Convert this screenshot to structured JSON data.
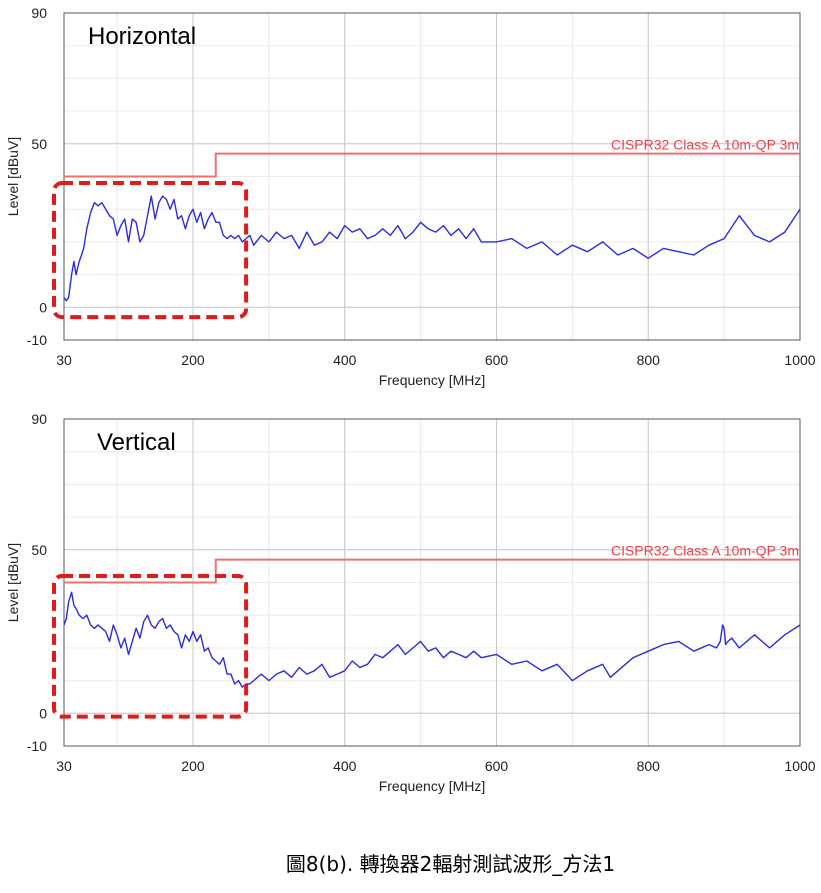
{
  "caption": "圖8(b). 轉換器2輻射測試波形_方法1",
  "chart_data": [
    {
      "type": "line",
      "title": "Horizontal",
      "xlabel": "Frequency [MHz]",
      "ylabel": "Level [dBuV]",
      "xlim": [
        30,
        1000
      ],
      "ylim": [
        -10,
        90
      ],
      "xticks": [
        30,
        200,
        400,
        600,
        800,
        1000
      ],
      "yticks": [
        -10,
        0,
        50,
        90
      ],
      "limit_label": "CISPR32 Class A 10m-QP 3m",
      "limit_line": {
        "x": [
          30,
          230,
          230,
          1000
        ],
        "y": [
          40,
          40,
          47,
          47
        ]
      },
      "highlight_box": {
        "x": [
          30,
          270
        ],
        "y": [
          -3,
          38
        ]
      },
      "series": [
        {
          "color": "#2b2be0",
          "x": [
            30,
            33,
            36,
            40,
            43,
            46,
            50,
            53,
            56,
            60,
            65,
            70,
            75,
            80,
            85,
            90,
            95,
            100,
            105,
            110,
            115,
            120,
            125,
            130,
            135,
            140,
            145,
            150,
            155,
            160,
            165,
            170,
            175,
            180,
            185,
            190,
            195,
            200,
            205,
            210,
            215,
            220,
            225,
            230,
            235,
            240,
            245,
            250,
            255,
            260,
            265,
            270,
            275,
            280,
            290,
            300,
            310,
            320,
            330,
            340,
            350,
            360,
            370,
            380,
            390,
            400,
            410,
            420,
            430,
            440,
            450,
            460,
            470,
            480,
            490,
            500,
            510,
            520,
            530,
            540,
            550,
            560,
            570,
            580,
            600,
            620,
            640,
            660,
            680,
            700,
            720,
            740,
            760,
            780,
            800,
            820,
            840,
            860,
            880,
            900,
            920,
            940,
            960,
            980,
            1000
          ],
          "y": [
            3,
            2,
            3,
            10,
            14,
            10,
            14,
            16,
            18,
            24,
            29,
            32,
            31,
            32,
            30,
            28,
            27,
            22,
            25,
            27,
            20,
            27,
            26,
            20,
            22,
            28,
            34,
            27,
            32,
            34,
            33,
            30,
            33,
            27,
            28,
            24,
            28,
            30,
            26,
            29,
            24,
            27,
            29,
            26,
            26,
            22,
            21,
            22,
            21,
            22,
            20,
            21,
            22,
            19,
            22,
            20,
            23,
            21,
            22,
            18,
            23,
            19,
            20,
            23,
            21,
            25,
            23,
            24,
            21,
            22,
            24,
            22,
            25,
            21,
            23,
            26,
            24,
            23,
            25,
            22,
            24,
            21,
            24,
            20,
            20,
            21,
            18,
            20,
            16,
            19,
            17,
            20,
            16,
            18,
            15,
            18,
            17,
            16,
            19,
            21,
            28,
            22,
            20,
            23,
            30
          ]
        }
      ]
    },
    {
      "type": "line",
      "title": "Vertical",
      "xlabel": "Frequency [MHz]",
      "ylabel": "Level [dBuV]",
      "xlim": [
        30,
        1000
      ],
      "ylim": [
        -10,
        90
      ],
      "xticks": [
        30,
        200,
        400,
        600,
        800,
        1000
      ],
      "yticks": [
        -10,
        0,
        50,
        90
      ],
      "limit_label": "CISPR32 Class A 10m-QP 3m",
      "limit_line": {
        "x": [
          30,
          230,
          230,
          1000
        ],
        "y": [
          40,
          40,
          47,
          47
        ]
      },
      "highlight_box": {
        "x": [
          30,
          270
        ],
        "y": [
          -1,
          42
        ]
      },
      "series": [
        {
          "color": "#2b2be0",
          "x": [
            30,
            33,
            36,
            40,
            43,
            46,
            50,
            55,
            60,
            65,
            70,
            75,
            80,
            85,
            90,
            95,
            100,
            105,
            110,
            115,
            120,
            125,
            130,
            135,
            140,
            145,
            150,
            155,
            160,
            165,
            170,
            175,
            180,
            185,
            190,
            195,
            200,
            205,
            210,
            215,
            220,
            225,
            230,
            235,
            240,
            245,
            250,
            255,
            260,
            265,
            270,
            275,
            280,
            290,
            300,
            310,
            320,
            330,
            340,
            350,
            360,
            370,
            380,
            390,
            400,
            410,
            420,
            430,
            440,
            450,
            460,
            470,
            480,
            490,
            500,
            510,
            520,
            530,
            540,
            550,
            560,
            570,
            580,
            600,
            620,
            640,
            660,
            680,
            700,
            720,
            740,
            750,
            760,
            780,
            800,
            820,
            840,
            860,
            880,
            890,
            895,
            898,
            900,
            902,
            905,
            910,
            920,
            940,
            960,
            980,
            1000
          ],
          "y": [
            27,
            29,
            34,
            37,
            33,
            32,
            30,
            29,
            30,
            27,
            26,
            27,
            26,
            25,
            22,
            27,
            24,
            20,
            23,
            18,
            22,
            26,
            23,
            28,
            30,
            27,
            26,
            28,
            29,
            26,
            27,
            25,
            24,
            20,
            24,
            22,
            25,
            22,
            24,
            19,
            20,
            17,
            16,
            15,
            17,
            12,
            12,
            9,
            10,
            8,
            9,
            9,
            10,
            12,
            10,
            12,
            13,
            11,
            14,
            12,
            13,
            15,
            11,
            12,
            13,
            16,
            14,
            15,
            18,
            17,
            19,
            21,
            18,
            20,
            22,
            19,
            20,
            17,
            19,
            18,
            17,
            19,
            17,
            18,
            15,
            16,
            13,
            15,
            10,
            13,
            15,
            11,
            13,
            17,
            19,
            21,
            22,
            19,
            21,
            20,
            22,
            27,
            26,
            21,
            22,
            23,
            20,
            24,
            20,
            24,
            27
          ]
        }
      ]
    }
  ]
}
